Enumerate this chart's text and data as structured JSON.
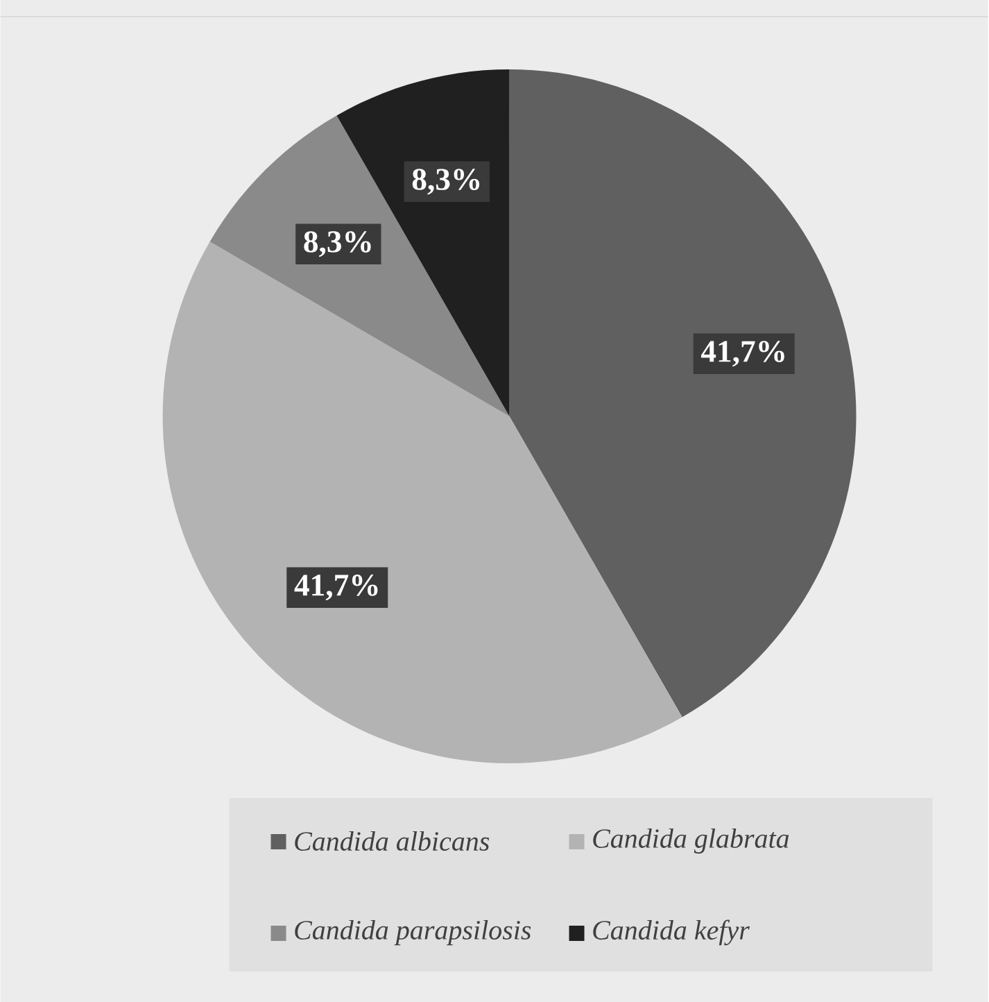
{
  "chart_data": {
    "type": "pie",
    "categories": [
      "Candida albicans",
      "Candida glabrata",
      "Candida parapsilosis",
      "Candida kefyr"
    ],
    "values": [
      41.7,
      41.7,
      8.3,
      8.3
    ],
    "colors": [
      "#606060",
      "#b3b3b3",
      "#8a8a8a",
      "#202020"
    ],
    "value_labels": [
      "41,7%",
      "41,7%",
      "8,3%",
      "8,3%"
    ],
    "legend": "bottom"
  }
}
